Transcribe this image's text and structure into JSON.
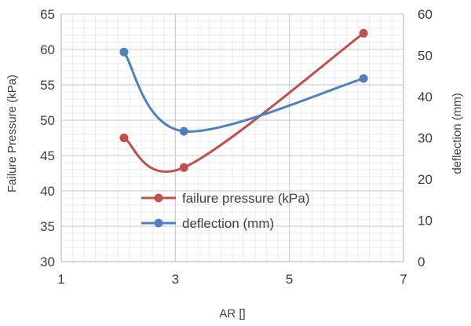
{
  "chart_data": {
    "type": "line",
    "title": "",
    "xlabel": "AR []",
    "ylabel": "Failure Pressure (kPa)",
    "y2label": "deflection (mm)",
    "xlim": [
      1,
      7
    ],
    "ylim": [
      30,
      65
    ],
    "y2lim": [
      0,
      60
    ],
    "x_ticks": [
      1,
      3,
      5,
      7
    ],
    "x_tick_labels": [
      "1",
      "3",
      "5",
      "7"
    ],
    "y_ticks": [
      30,
      35,
      40,
      45,
      50,
      55,
      60,
      65
    ],
    "y_tick_labels": [
      "30",
      "35",
      "40",
      "45",
      "50",
      "55",
      "60",
      "65"
    ],
    "y2_ticks": [
      0,
      10,
      20,
      30,
      40,
      50,
      60
    ],
    "y2_tick_labels": [
      "0",
      "10",
      "20",
      "30",
      "40",
      "50",
      "60"
    ],
    "grid": true,
    "legend_position": "center",
    "series": [
      {
        "name": "failure pressure (kPa)",
        "axis": "left",
        "color": "#C0504D",
        "x": [
          2.1,
          3.15,
          6.3
        ],
        "y": [
          47.5,
          43.3,
          62.3
        ]
      },
      {
        "name": "deflection (mm)",
        "axis": "right",
        "color": "#4F81BD",
        "x": [
          2.1,
          3.15,
          6.3
        ],
        "y": [
          50.8,
          31.6,
          44.4
        ]
      }
    ]
  }
}
